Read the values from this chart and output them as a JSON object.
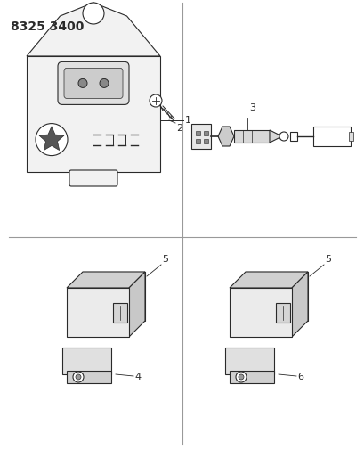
{
  "title": "8325 3400",
  "bg_color": "#ffffff",
  "line_color": "#2a2a2a",
  "grid_line_color": "#999999",
  "title_fontsize": 10,
  "label_fontsize": 8,
  "fig_width": 4.1,
  "fig_height": 5.33,
  "dpi": 100
}
